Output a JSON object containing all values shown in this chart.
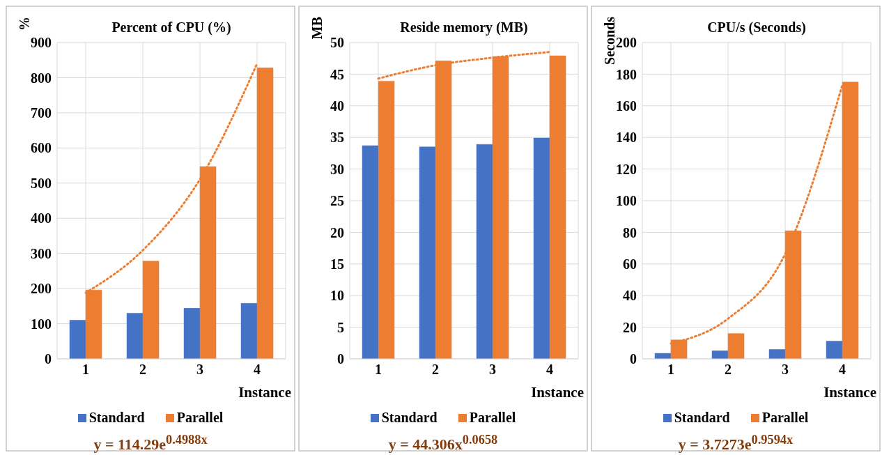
{
  "chart_data": [
    {
      "type": "bar",
      "title": "Percent of CPU (%)",
      "ylabel": "%",
      "xlabel": "Instance",
      "categories": [
        "1",
        "2",
        "3",
        "4"
      ],
      "series": [
        {
          "name": "Standard",
          "color": "#4472c4",
          "values": [
            110,
            130,
            144,
            158
          ]
        },
        {
          "name": "Parallel",
          "color": "#ed7d31",
          "values": [
            196,
            278,
            547,
            828
          ]
        },
        {
          "type": "line",
          "color": "#ed7d31",
          "line_style": "dotted",
          "x": [
            "1",
            "2",
            "3",
            "4"
          ],
          "values": [
            188,
            309,
            511,
            840
          ]
        }
      ],
      "ylim": [
        0,
        900
      ],
      "yticks": [
        0,
        100,
        200,
        300,
        400,
        500,
        600,
        700,
        800,
        900
      ],
      "grid": true,
      "legend": "bottom",
      "annotations": [
        "y = 114.29e$^{0.4988x}$"
      ]
    },
    {
      "type": "bar",
      "title": "Reside memory (MB)",
      "ylabel": "MB",
      "xlabel": "Instance",
      "categories": [
        "1",
        "2",
        "3",
        "4"
      ],
      "series": [
        {
          "name": "Standard",
          "color": "#4472c4",
          "values": [
            33.7,
            33.5,
            33.9,
            34.9
          ]
        },
        {
          "name": "Parallel",
          "color": "#ed7d31",
          "values": [
            43.9,
            47.1,
            47.8,
            47.9
          ]
        },
        {
          "type": "line",
          "color": "#ed7d31",
          "line_style": "dotted",
          "x": [
            "1",
            "2",
            "3",
            "4"
          ],
          "values": [
            44.3,
            46.4,
            47.6,
            48.5
          ]
        }
      ],
      "ylim": [
        0,
        50
      ],
      "yticks": [
        0,
        5,
        10,
        15,
        20,
        25,
        30,
        35,
        40,
        45,
        50
      ],
      "grid": true,
      "legend": "bottom",
      "annotations": [
        "y = 44.306x$^{0.0658}$"
      ]
    },
    {
      "type": "bar",
      "title": "CPU/s (Seconds)",
      "ylabel": "Seconds",
      "xlabel": "Instance",
      "categories": [
        "1",
        "2",
        "3",
        "4"
      ],
      "series": [
        {
          "name": "Standard",
          "color": "#4472c4",
          "values": [
            3.5,
            5.1,
            5.9,
            11.2
          ]
        },
        {
          "name": "Parallel",
          "color": "#ed7d31",
          "values": [
            12,
            16,
            81,
            175
          ]
        },
        {
          "type": "line",
          "color": "#ed7d31",
          "line_style": "dotted",
          "x": [
            "1",
            "2",
            "3",
            "4"
          ],
          "values": [
            9.7,
            25.4,
            66.3,
            173
          ]
        }
      ],
      "ylim": [
        0,
        200
      ],
      "yticks": [
        0,
        20,
        40,
        60,
        80,
        100,
        120,
        140,
        160,
        180,
        200
      ],
      "grid": true,
      "legend": "bottom",
      "annotations": [
        "y = 3.7273e$^{0.9594x}$"
      ]
    }
  ]
}
